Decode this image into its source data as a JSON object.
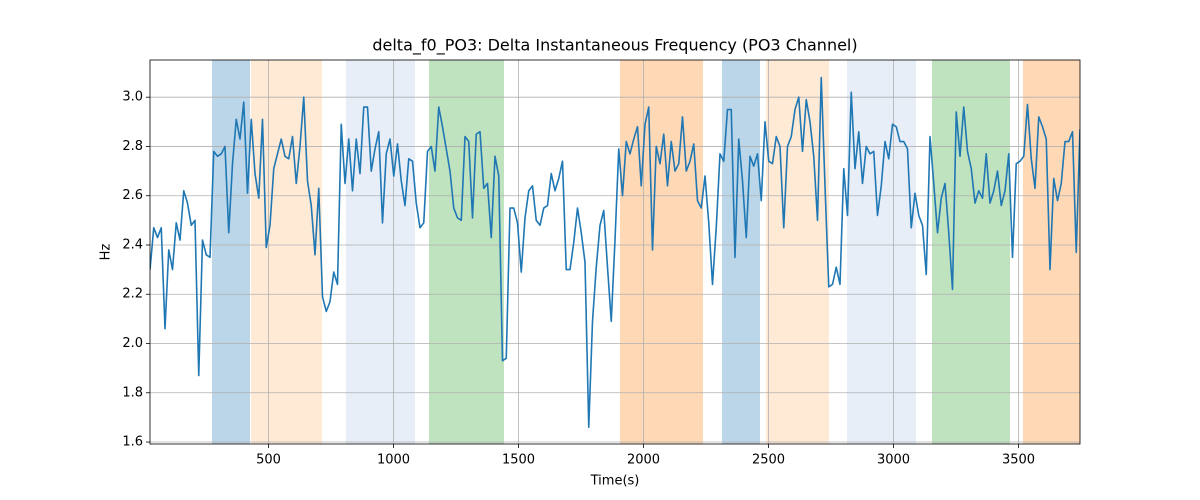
{
  "chart_data": {
    "type": "line",
    "title": "delta_f0_PO3: Delta Instantaneous Frequency (PO3 Channel)",
    "xlabel": "Time(s)",
    "ylabel": "Hz",
    "color": "#1f77b4",
    "grid": true,
    "xlim": [
      26,
      3746
    ],
    "ylim": [
      1.592,
      3.151
    ],
    "xticks": [
      500,
      1000,
      1500,
      2000,
      2500,
      3000,
      3500
    ],
    "yticks": [
      1.6,
      1.8,
      {
        "value": 2,
        "label": "2.0"
      },
      2.2,
      2.4,
      2.6,
      2.8,
      {
        "value": 3,
        "label": "3.0"
      }
    ],
    "span_alpha": 0.3,
    "spans": [
      {
        "x0": 274,
        "x1": 426,
        "color": "#1f77b4"
      },
      {
        "x0": 430,
        "x1": 714,
        "color": "#ffbb78"
      },
      {
        "x0": 810,
        "x1": 1086,
        "color": "#aec7e8"
      },
      {
        "x0": 1142,
        "x1": 1442,
        "color": "#2ca02c"
      },
      {
        "x0": 1906,
        "x1": 2238,
        "color": "#ff7f0e"
      },
      {
        "x0": 2314,
        "x1": 2466,
        "color": "#1f77b4"
      },
      {
        "x0": 2490,
        "x1": 2742,
        "color": "#ffbb78"
      },
      {
        "x0": 2814,
        "x1": 3090,
        "color": "#aec7e8"
      },
      {
        "x0": 3154,
        "x1": 3466,
        "color": "#2ca02c"
      },
      {
        "x0": 3518,
        "x1": 3746,
        "color": "#ff7f0e"
      }
    ],
    "x": [
      26,
      41,
      56,
      71,
      86,
      101,
      116,
      131,
      146,
      161,
      176,
      191,
      206,
      221,
      236,
      251,
      266,
      281,
      296,
      311,
      326,
      341,
      356,
      371,
      386,
      401,
      416,
      431,
      446,
      461,
      476,
      491,
      506,
      521,
      536,
      551,
      566,
      581,
      596,
      611,
      626,
      641,
      656,
      671,
      686,
      701,
      716,
      731,
      746,
      761,
      776,
      791,
      806,
      821,
      836,
      851,
      866,
      881,
      896,
      911,
      926,
      941,
      956,
      971,
      986,
      1001,
      1016,
      1031,
      1046,
      1061,
      1076,
      1091,
      1106,
      1121,
      1136,
      1151,
      1166,
      1181,
      1196,
      1211,
      1226,
      1241,
      1256,
      1271,
      1286,
      1301,
      1316,
      1331,
      1346,
      1361,
      1376,
      1391,
      1406,
      1421,
      1436,
      1451,
      1466,
      1481,
      1496,
      1511,
      1526,
      1541,
      1556,
      1571,
      1586,
      1601,
      1616,
      1631,
      1646,
      1661,
      1676,
      1691,
      1706,
      1721,
      1736,
      1751,
      1766,
      1781,
      1796,
      1811,
      1826,
      1841,
      1856,
      1871,
      1886,
      1901,
      1916,
      1931,
      1946,
      1961,
      1976,
      1991,
      2006,
      2021,
      2036,
      2051,
      2066,
      2081,
      2096,
      2111,
      2126,
      2141,
      2156,
      2171,
      2186,
      2201,
      2216,
      2231,
      2246,
      2261,
      2276,
      2291,
      2306,
      2321,
      2336,
      2351,
      2366,
      2381,
      2396,
      2411,
      2426,
      2441,
      2456,
      2471,
      2486,
      2501,
      2516,
      2531,
      2546,
      2561,
      2576,
      2591,
      2606,
      2621,
      2636,
      2651,
      2666,
      2681,
      2696,
      2711,
      2726,
      2741,
      2756,
      2771,
      2786,
      2801,
      2816,
      2831,
      2846,
      2861,
      2876,
      2891,
      2906,
      2921,
      2936,
      2951,
      2966,
      2981,
      2996,
      3011,
      3026,
      3041,
      3056,
      3071,
      3086,
      3101,
      3116,
      3131,
      3146,
      3161,
      3176,
      3191,
      3206,
      3221,
      3236,
      3251,
      3266,
      3281,
      3296,
      3311,
      3326,
      3341,
      3356,
      3371,
      3386,
      3401,
      3416,
      3431,
      3446,
      3461,
      3476,
      3491,
      3506,
      3521,
      3536,
      3551,
      3566,
      3581,
      3596,
      3611,
      3626,
      3641,
      3656,
      3671,
      3686,
      3701,
      3716,
      3731,
      3746
    ],
    "series": [
      {
        "color": "#1f77b4",
        "values": [
          2.3,
          2.47,
          2.43,
          2.47,
          2.06,
          2.38,
          2.3,
          2.49,
          2.42,
          2.62,
          2.57,
          2.48,
          2.5,
          1.87,
          2.42,
          2.36,
          2.35,
          2.78,
          2.76,
          2.77,
          2.8,
          2.45,
          2.73,
          2.91,
          2.83,
          2.98,
          2.61,
          2.91,
          2.69,
          2.59,
          2.91,
          2.39,
          2.48,
          2.71,
          2.77,
          2.83,
          2.76,
          2.75,
          2.84,
          2.65,
          2.8,
          3.0,
          2.66,
          2.56,
          2.36,
          2.63,
          2.19,
          2.13,
          2.17,
          2.29,
          2.24,
          2.89,
          2.65,
          2.83,
          2.62,
          2.83,
          2.69,
          2.96,
          2.96,
          2.7,
          2.79,
          2.86,
          2.49,
          2.77,
          2.83,
          2.68,
          2.81,
          2.66,
          2.56,
          2.75,
          2.74,
          2.57,
          2.47,
          2.49,
          2.78,
          2.8,
          2.7,
          2.96,
          2.88,
          2.79,
          2.7,
          2.55,
          2.51,
          2.5,
          2.84,
          2.82,
          2.51,
          2.85,
          2.86,
          2.63,
          2.65,
          2.43,
          2.76,
          2.68,
          1.93,
          1.94,
          2.55,
          2.55,
          2.49,
          2.29,
          2.51,
          2.62,
          2.64,
          2.5,
          2.48,
          2.55,
          2.56,
          2.69,
          2.62,
          2.67,
          2.74,
          2.3,
          2.3,
          2.41,
          2.55,
          2.45,
          2.33,
          1.66,
          2.09,
          2.31,
          2.48,
          2.54,
          2.31,
          2.09,
          2.42,
          2.79,
          2.6,
          2.82,
          2.77,
          2.83,
          2.88,
          2.64,
          2.89,
          2.96,
          2.38,
          2.8,
          2.73,
          2.85,
          2.64,
          2.82,
          2.7,
          2.73,
          2.92,
          2.7,
          2.74,
          2.81,
          2.58,
          2.55,
          2.68,
          2.49,
          2.24,
          2.47,
          2.77,
          2.74,
          2.95,
          2.95,
          2.35,
          2.83,
          2.66,
          2.43,
          2.76,
          2.72,
          2.77,
          2.58,
          2.9,
          2.74,
          2.73,
          2.84,
          2.8,
          2.47,
          2.8,
          2.84,
          2.95,
          3.0,
          2.78,
          2.99,
          2.9,
          2.76,
          2.5,
          3.08,
          2.64,
          2.23,
          2.24,
          2.31,
          2.24,
          2.71,
          2.52,
          3.02,
          2.71,
          2.86,
          2.65,
          2.8,
          2.77,
          2.78,
          2.52,
          2.64,
          2.82,
          2.75,
          2.89,
          2.88,
          2.82,
          2.82,
          2.79,
          2.47,
          2.61,
          2.52,
          2.48,
          2.28,
          2.84,
          2.65,
          2.45,
          2.59,
          2.65,
          2.45,
          2.22,
          2.94,
          2.76,
          2.96,
          2.78,
          2.71,
          2.57,
          2.62,
          2.59,
          2.77,
          2.57,
          2.62,
          2.7,
          2.56,
          2.62,
          2.77,
          2.35,
          2.73,
          2.74,
          2.76,
          2.97,
          2.75,
          2.63,
          2.92,
          2.88,
          2.83,
          2.3,
          2.67,
          2.58,
          2.65,
          2.82,
          2.82,
          2.86,
          2.37,
          2.87
        ]
      }
    ]
  }
}
